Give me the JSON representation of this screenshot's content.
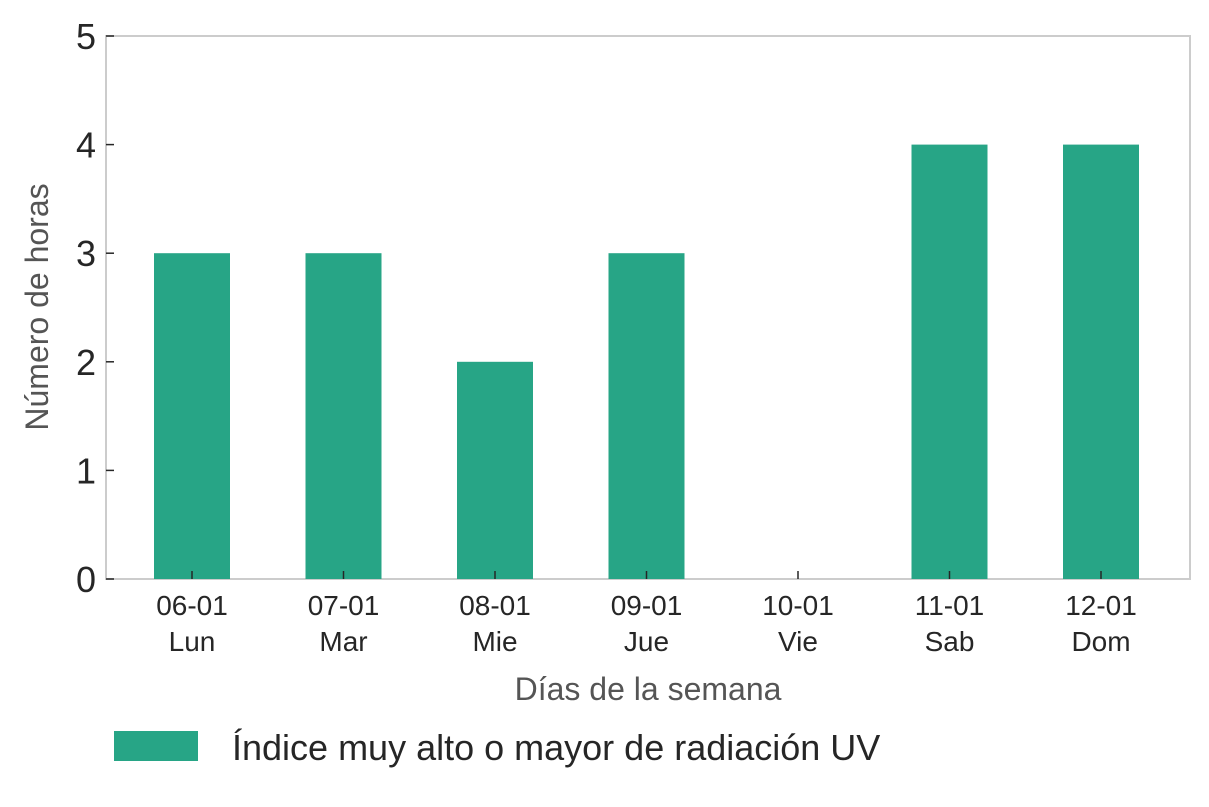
{
  "chart_data": {
    "type": "bar",
    "categories": [
      "06-01\nLun",
      "07-01\nMar",
      "08-01\nMie",
      "09-01\nJue",
      "10-01\nVie",
      "11-01\nSab",
      "12-01\nDom"
    ],
    "series": [
      {
        "name": "Índice muy alto o mayor de radiación UV",
        "color": "#27a586",
        "values": [
          3,
          3,
          2,
          3,
          0,
          4,
          4
        ]
      }
    ],
    "xlabel": "Días de la semana",
    "ylabel": "Número de horas",
    "ylim": [
      0,
      5
    ],
    "yticks": [
      0,
      1,
      2,
      3,
      4,
      5
    ],
    "grid": false,
    "legend_position": "bottom"
  }
}
